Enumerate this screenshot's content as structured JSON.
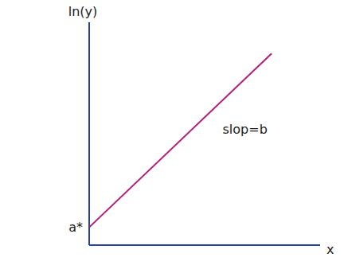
{
  "chart_data": {
    "type": "line",
    "x": [
      0,
      7.9
    ],
    "values": [
      0.8,
      8.6
    ],
    "color": "#b0207a",
    "xlim": [
      0,
      10
    ],
    "ylim": [
      0,
      10
    ],
    "xticks": [],
    "yticks": [],
    "tick_labels": false,
    "grid": false,
    "x_label": "x",
    "y_label": "ln(y)",
    "annotations": [
      {
        "text": "a*",
        "x": 0,
        "y": 0.8
      },
      {
        "text": "slop=b",
        "x": 5.5,
        "y": 5.2
      }
    ]
  }
}
